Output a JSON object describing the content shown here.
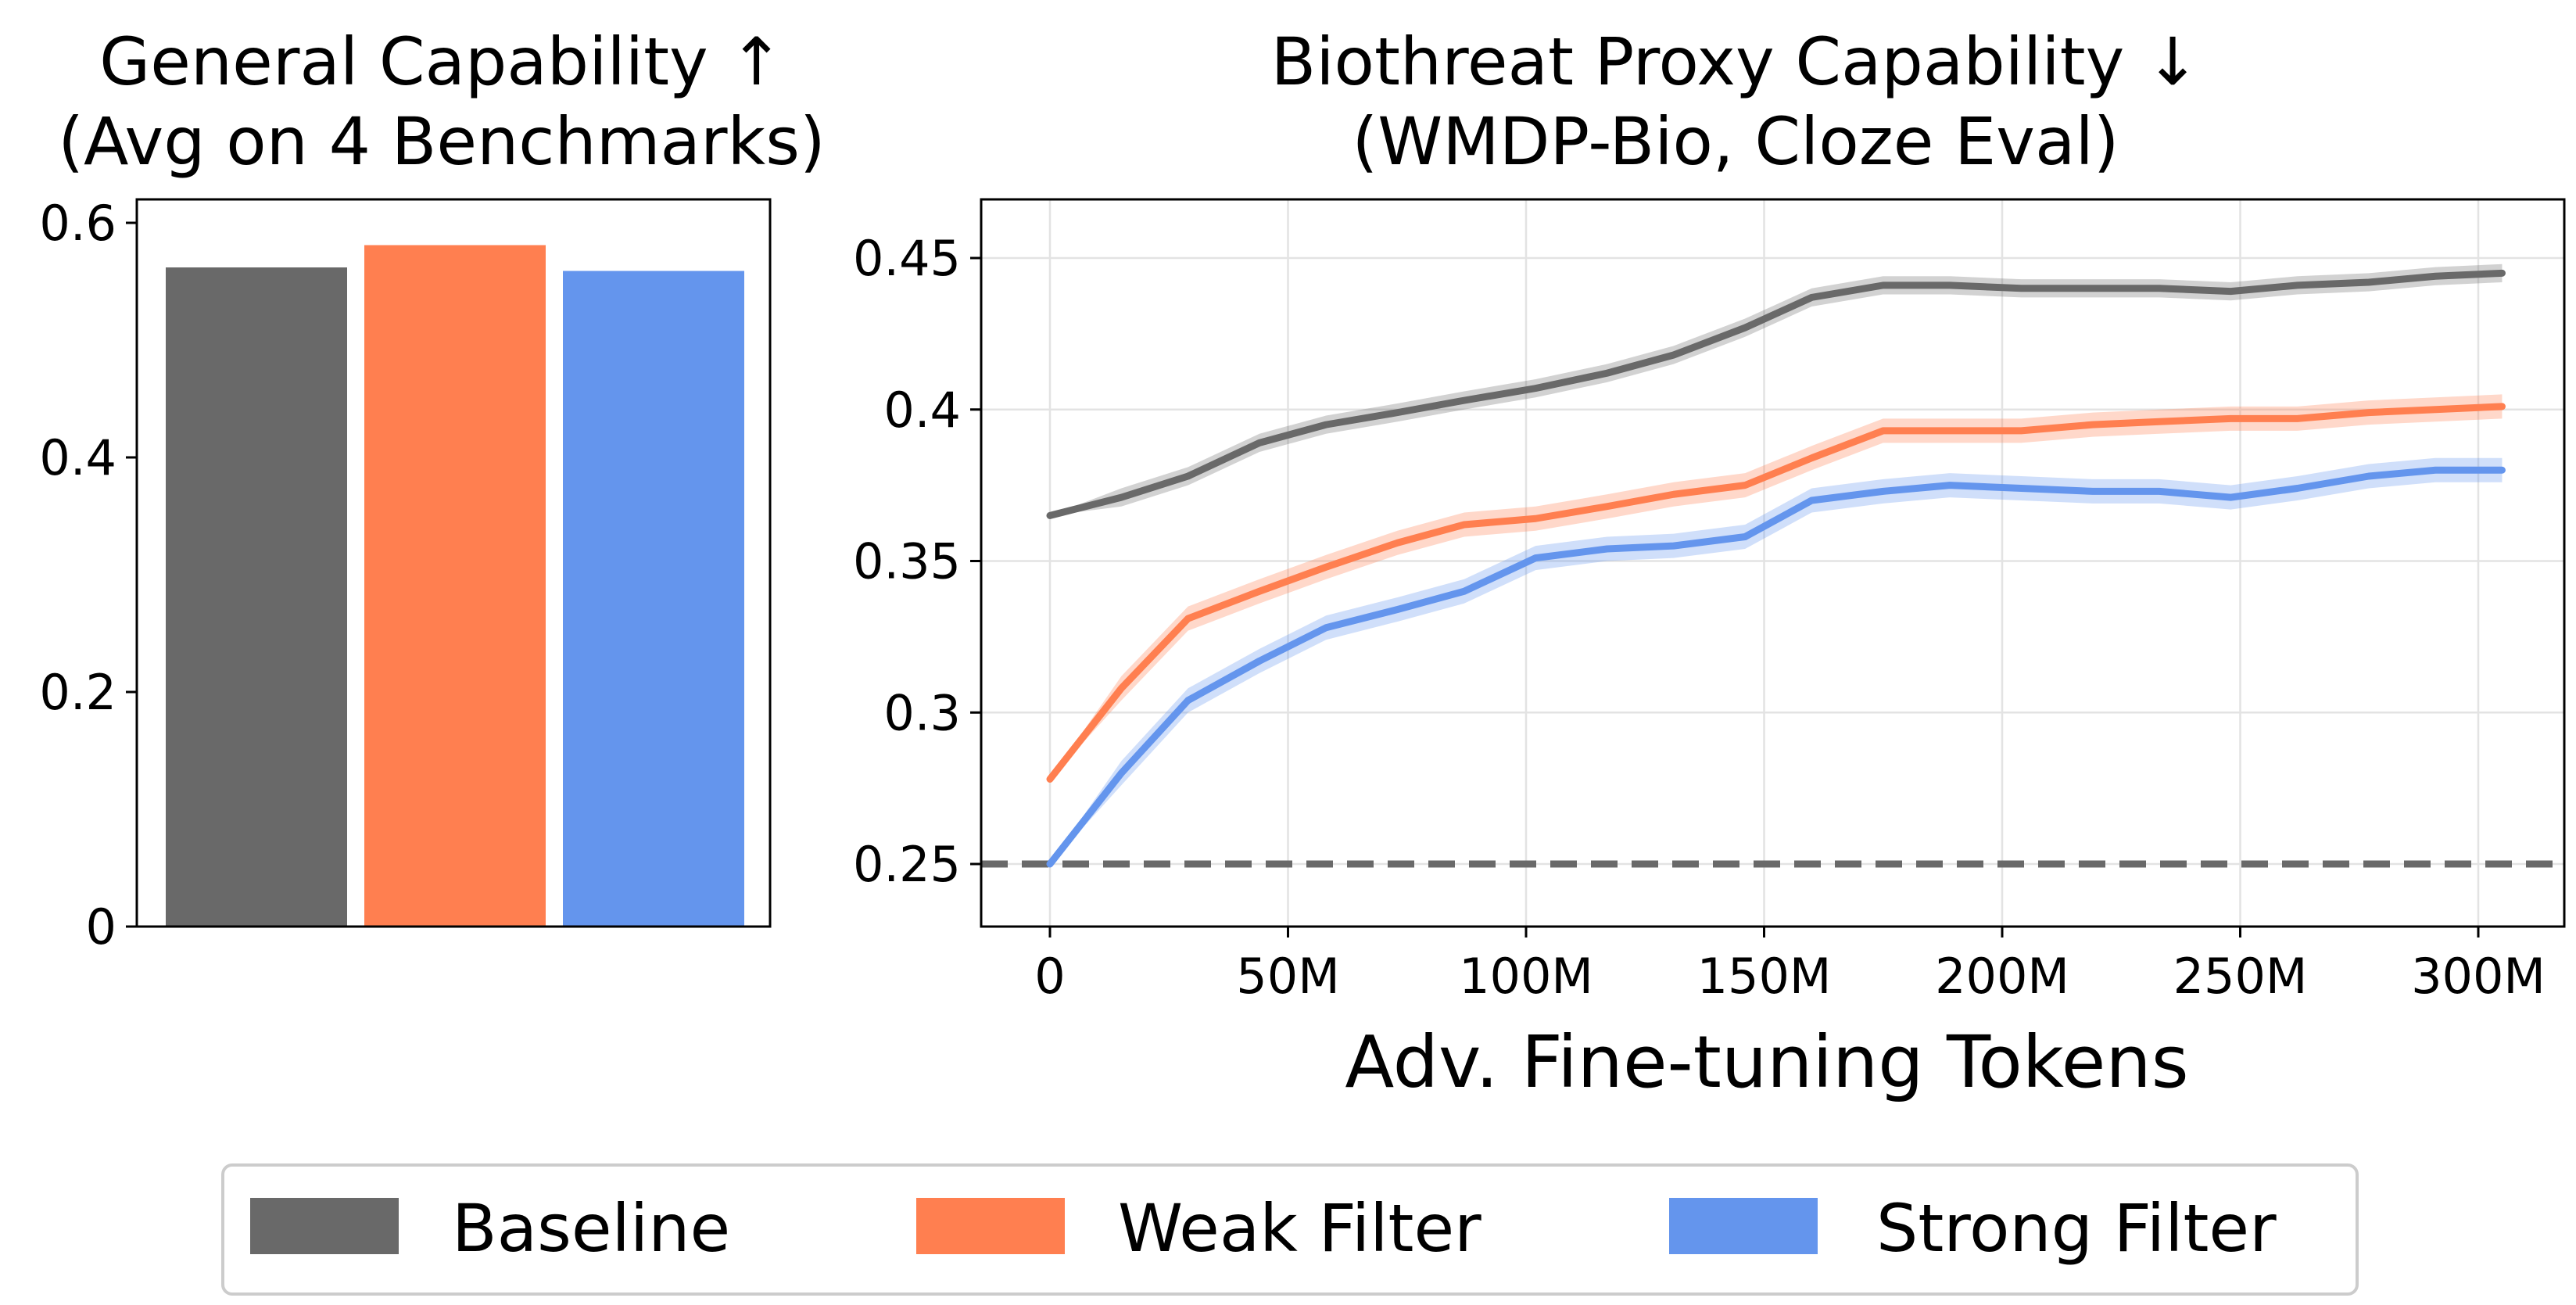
{
  "chart_data": [
    {
      "type": "bar",
      "title": "General Capability  ↑",
      "subtitle": "(Avg on 4 Benchmarks)",
      "categories": [
        "Baseline",
        "Weak Filter",
        "Strong Filter"
      ],
      "values": [
        0.562,
        0.581,
        0.559
      ],
      "ylim": [
        0,
        0.6
      ],
      "yticks": [
        0,
        0.2,
        0.4,
        0.6
      ],
      "ytick_labels": [
        "0",
        "0.2",
        "0.4",
        "0.6"
      ],
      "xlabel": "",
      "ylabel": "",
      "grid": false
    },
    {
      "type": "line",
      "title": "Biothreat Proxy Capability   ↓",
      "subtitle": "(WMDP-Bio, Cloze Eval)",
      "xlabel": "Adv. Fine-tuning Tokens",
      "ylabel": "",
      "xlim": [
        -15,
        320
      ],
      "ylim": [
        0.23,
        0.47
      ],
      "xticks": [
        0,
        50,
        100,
        150,
        200,
        250,
        300
      ],
      "xtick_labels": [
        "0",
        "50M",
        "100M",
        "150M",
        "200M",
        "250M",
        "300M"
      ],
      "yticks": [
        0.25,
        0.3,
        0.35,
        0.4,
        0.45
      ],
      "ytick_labels": [
        "0.25",
        "0.3",
        "0.35",
        "0.4",
        "0.45"
      ],
      "grid": true,
      "reference_line": {
        "y": 0.25,
        "style": "dashed"
      },
      "x": [
        0,
        15,
        29,
        44,
        58,
        73,
        87,
        102,
        117,
        131,
        146,
        160,
        175,
        189,
        204,
        219,
        233,
        248,
        262,
        277,
        291,
        305
      ],
      "series": [
        {
          "name": "Baseline",
          "values": [
            0.365,
            0.371,
            0.378,
            0.389,
            0.395,
            0.399,
            0.403,
            0.407,
            0.412,
            0.418,
            0.427,
            0.437,
            0.441,
            0.441,
            0.44,
            0.44,
            0.44,
            0.439,
            0.441,
            0.442,
            0.444,
            0.445
          ],
          "band": 0.003
        },
        {
          "name": "Weak Filter",
          "values": [
            0.278,
            0.308,
            0.331,
            0.34,
            0.348,
            0.356,
            0.362,
            0.364,
            0.368,
            0.372,
            0.375,
            0.384,
            0.393,
            0.393,
            0.393,
            0.395,
            0.396,
            0.397,
            0.397,
            0.399,
            0.4,
            0.401
          ],
          "band": 0.004
        },
        {
          "name": "Strong Filter",
          "values": [
            0.25,
            0.28,
            0.304,
            0.317,
            0.328,
            0.334,
            0.34,
            0.351,
            0.354,
            0.355,
            0.358,
            0.37,
            0.373,
            0.375,
            0.374,
            0.373,
            0.373,
            0.371,
            0.374,
            0.378,
            0.38,
            0.38
          ],
          "band": 0.004
        }
      ]
    }
  ],
  "legend": {
    "placement": "bottom-center",
    "items": [
      {
        "label": "Baseline",
        "color": "#696969"
      },
      {
        "label": "Weak Filter",
        "color": "#ff7f50"
      },
      {
        "label": "Strong Filter",
        "color": "#6495ed"
      }
    ]
  },
  "colors": {
    "baseline": "#696969",
    "weak": "#ff7f50",
    "strong": "#6495ed",
    "reference": "#696969"
  }
}
